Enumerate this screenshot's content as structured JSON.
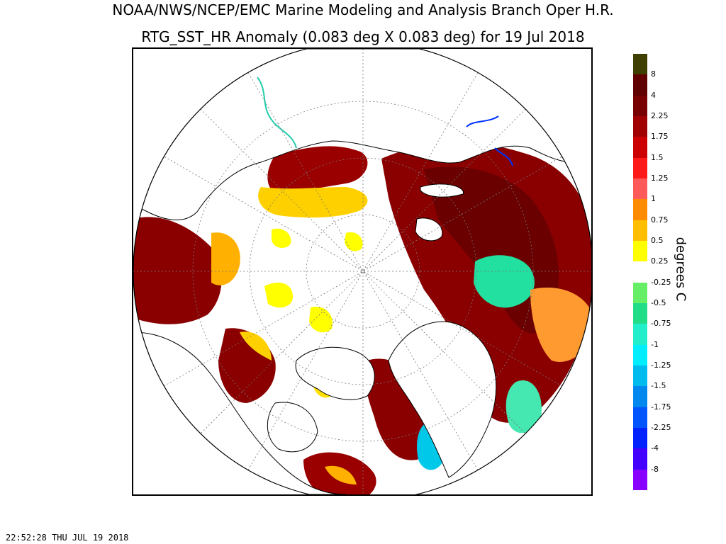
{
  "title_line1": "NOAA/NWS/NCEP/EMC Marine Modeling and Analysis Branch Oper H.R.",
  "title_line2": "RTG_SST_HR Anomaly (0.083 deg X 0.083 deg) for 19 Jul 2018",
  "colorbar": {
    "units_label": "degrees C",
    "bins": [
      {
        "color": "#3f3f00",
        "label": "8"
      },
      {
        "color": "#600000",
        "label": "4"
      },
      {
        "color": "#780000",
        "label": "2.25"
      },
      {
        "color": "#a00000",
        "label": "1.75"
      },
      {
        "color": "#cc0000",
        "label": "1.5"
      },
      {
        "color": "#ff1a1a",
        "label": "1.25"
      },
      {
        "color": "#ff5a5a",
        "label": "1"
      },
      {
        "color": "#ff8c00",
        "label": "0.75"
      },
      {
        "color": "#ffbe00",
        "label": "0.5"
      },
      {
        "color": "#ffff00",
        "label": "0.25"
      },
      {
        "color": "#ffffff",
        "label": "-0.25"
      },
      {
        "color": "#66ee66",
        "label": "-0.5"
      },
      {
        "color": "#22dd88",
        "label": "-0.75"
      },
      {
        "color": "#22eecc",
        "label": "-1"
      },
      {
        "color": "#00eeff",
        "label": "-1.25"
      },
      {
        "color": "#00bbee",
        "label": "-1.5"
      },
      {
        "color": "#0088ee",
        "label": "-1.75"
      },
      {
        "color": "#0055ff",
        "label": "-2.25"
      },
      {
        "color": "#0022ff",
        "label": "-4"
      },
      {
        "color": "#4400ff",
        "label": "-8"
      },
      {
        "color": "#8800ff",
        "label": ""
      }
    ]
  },
  "map": {
    "projection": "polar stereographic (north polar)",
    "graticule": "dotted",
    "colors": {
      "land": "#ffffff",
      "coast": "#000000",
      "ice_or_near_zero": "#ffffff"
    }
  },
  "timestamp": "22:52:28  THU JUL 19 2018"
}
